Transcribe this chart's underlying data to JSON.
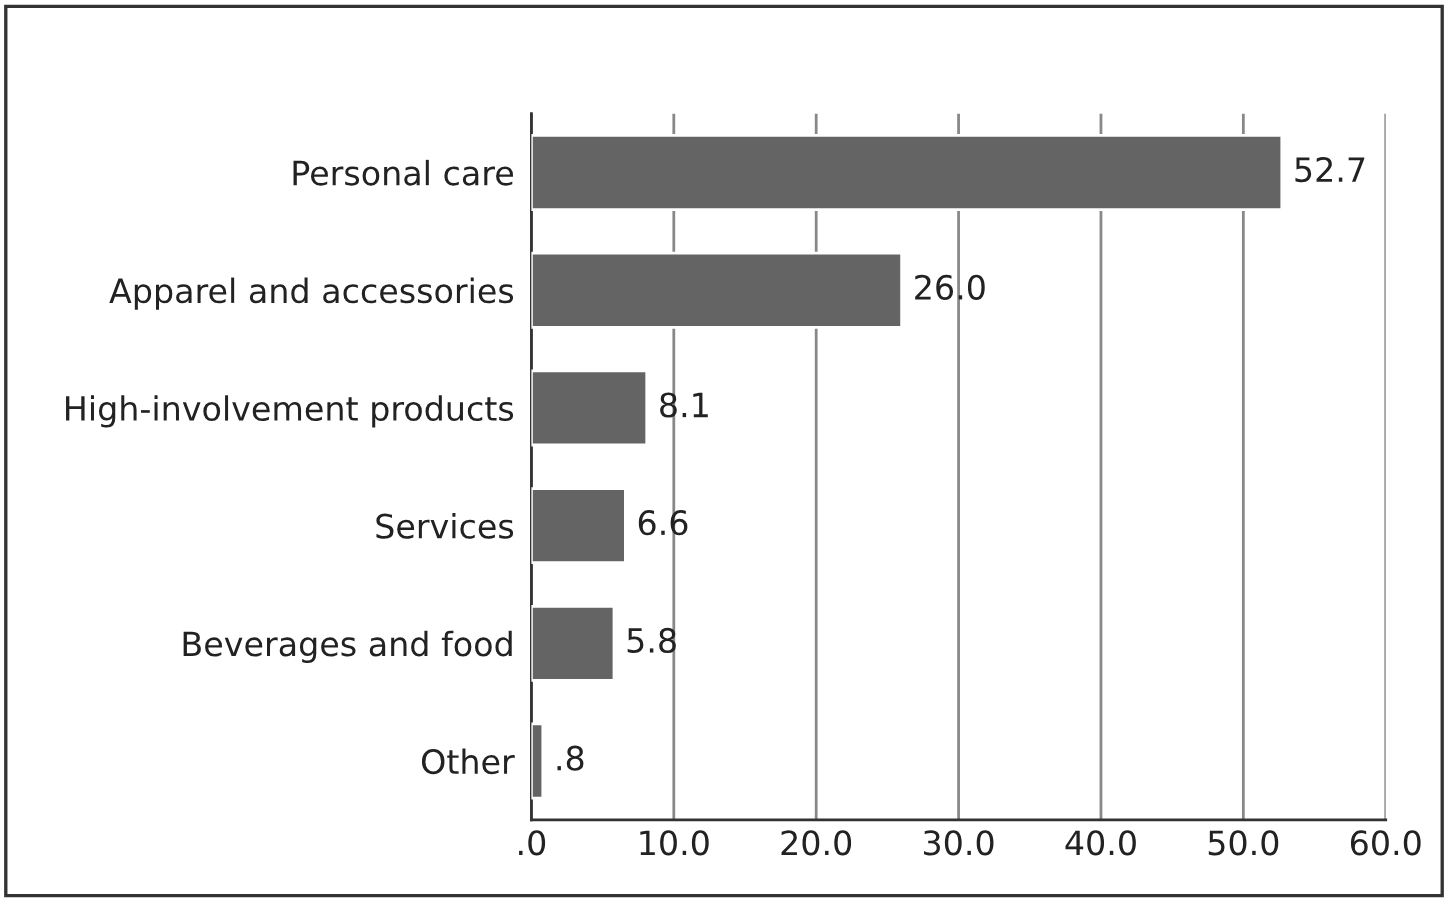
{
  "chart_data": {
    "type": "bar",
    "orientation": "horizontal",
    "categories": [
      "Personal care",
      "Apparel and accessories",
      "High-involvement products",
      "Services",
      "Beverages and food",
      "Other"
    ],
    "values": [
      52.7,
      26.0,
      8.1,
      6.6,
      5.8,
      0.8
    ],
    "value_labels": [
      "52.7",
      "26.0",
      "8.1",
      "6.6",
      "5.8",
      ".8"
    ],
    "color": "#646464",
    "xlim": [
      0,
      60
    ],
    "xticks": [
      {
        "value": 0,
        "label": ".0"
      },
      {
        "value": 10,
        "label": "10.0"
      },
      {
        "value": 20,
        "label": "20.0"
      },
      {
        "value": 30,
        "label": "30.0"
      },
      {
        "value": 40,
        "label": "40.0"
      },
      {
        "value": 50,
        "label": "50.0"
      },
      {
        "value": 60,
        "label": "60.0"
      }
    ],
    "grid": "x"
  }
}
